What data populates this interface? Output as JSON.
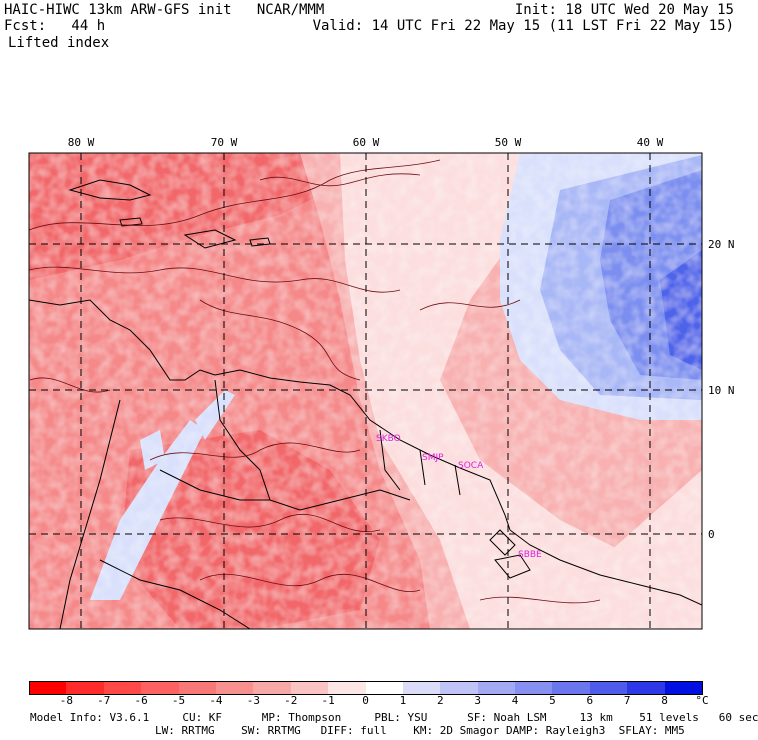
{
  "header": {
    "left_line1": "HAIC-HIWC 13km ARW-GFS init   NCAR/MMM",
    "left_line2": "Fcst:   44 h",
    "left_line3": "Lifted index",
    "right_line1": "Init: 18 UTC Wed 20 May 15",
    "right_line2": "Valid: 14 UTC Fri 22 May 15 (11 LST Fri 22 May 15)"
  },
  "map": {
    "lon_labels": [
      "80 W",
      "70 W",
      "60 W",
      "50 W",
      "40 W"
    ],
    "lat_labels": [
      "20 N",
      "10 N",
      "0"
    ],
    "stations": [
      "SKBO",
      "SMJP",
      "SOCA",
      "SBBE"
    ],
    "colors": {
      "deep_red": "#f2686a",
      "mid_red": "#f5898a",
      "light_red": "#f8b0b0",
      "pale_red": "#fcdede",
      "pale_blue": "#d9e0fb",
      "light_blue": "#a8b7f6",
      "mid_blue": "#7b8ff0",
      "deep_blue": "#4d63ea",
      "station": "#e01fd8"
    }
  },
  "colorbar": {
    "ticks": [
      "-8",
      "-7",
      "-6",
      "-5",
      "-4",
      "-3",
      "-2",
      "-1",
      "0",
      "1",
      "2",
      "3",
      "4",
      "5",
      "6",
      "7",
      "8"
    ],
    "unit": "°C",
    "colors": [
      "#ff0000",
      "#ff2b2b",
      "#ff4848",
      "#fd6161",
      "#f87777",
      "#f89090",
      "#f9a8a8",
      "#fbc4c4",
      "#fde6e6",
      "#ffffff",
      "#dadcf8",
      "#bfc3f5",
      "#a3aaf2",
      "#878ff0",
      "#6b75ed",
      "#4f5bea",
      "#2d38e6",
      "#0010e0"
    ]
  },
  "footer": {
    "line1": "Model Info: V3.6.1     CU: KF      MP: Thompson     PBL: YSU      SF: Noah LSM     13 km    51 levels   60 sec",
    "line2": "LW: RRTMG    SW: RRTMG   DIFF: full    KM: 2D Smagor DAMP: Rayleigh3  SFLAY: MM5"
  }
}
